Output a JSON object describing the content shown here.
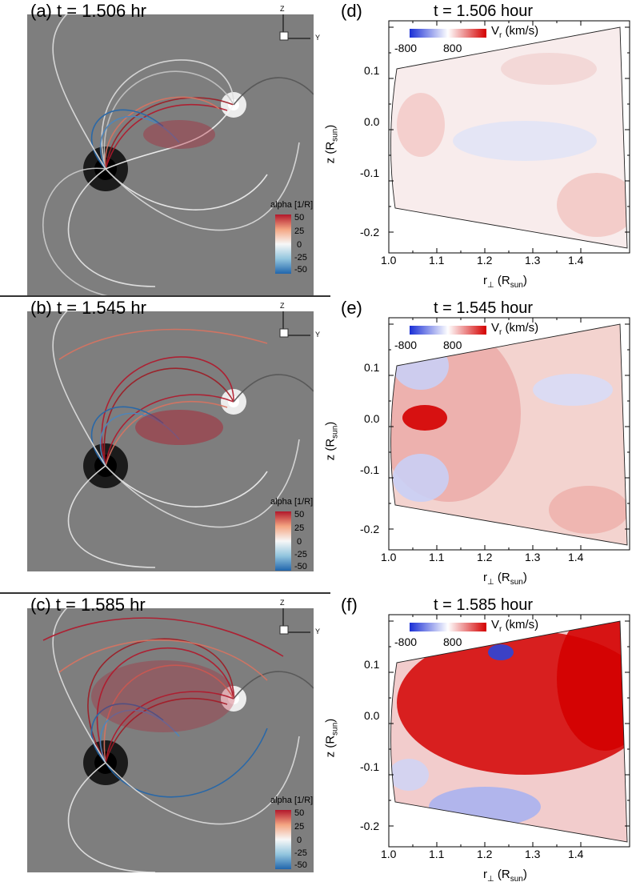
{
  "left_panels": [
    {
      "label": "(a) t = 1.506 hr",
      "intensity": 0.25
    },
    {
      "label": "(b) t = 1.545 hr",
      "intensity": 0.55
    },
    {
      "label": "(c) t = 1.585 hr",
      "intensity": 1.0
    }
  ],
  "triad": {
    "z": "Z",
    "y": "Y"
  },
  "alpha_colorbar": {
    "title": "alpha [1/R]",
    "ticks": [
      "50",
      "25",
      "0",
      "-25",
      "-50"
    ],
    "colors": [
      "#b2182b",
      "#f4a582",
      "#f7f7f7",
      "#92c5de",
      "#2166ac"
    ]
  },
  "right_panels": [
    {
      "label": "(d)",
      "title": "t = 1.506 hour"
    },
    {
      "label": "(e)",
      "title": "t = 1.545 hour"
    },
    {
      "label": "(f)",
      "title": "t = 1.585 hour"
    }
  ],
  "vr_colorbar": {
    "title_main": "V",
    "title_sub": "r",
    "title_unit": " (km/s)",
    "min": "-800",
    "max": "800",
    "colors": [
      "#1a2fd6",
      "#ffffff",
      "#d40000"
    ]
  },
  "axes": {
    "x_label_main": "r",
    "x_label_sub1": "⊥",
    "x_label_mid": " (R",
    "x_label_sub2": "sun",
    "x_label_end": ")",
    "y_label_main": "z (R",
    "y_label_sub": "sun",
    "y_label_end": ")",
    "x_ticks": [
      "1.0",
      "1.1",
      "1.2",
      "1.3",
      "1.4"
    ],
    "y_ticks": [
      "0.1",
      "0.0",
      "-0.1",
      "-0.2"
    ]
  },
  "colors": {
    "magnetogram_bg": "#7e7e7e",
    "pos_red": "#d40000",
    "neg_blue": "#2b45d8"
  }
}
